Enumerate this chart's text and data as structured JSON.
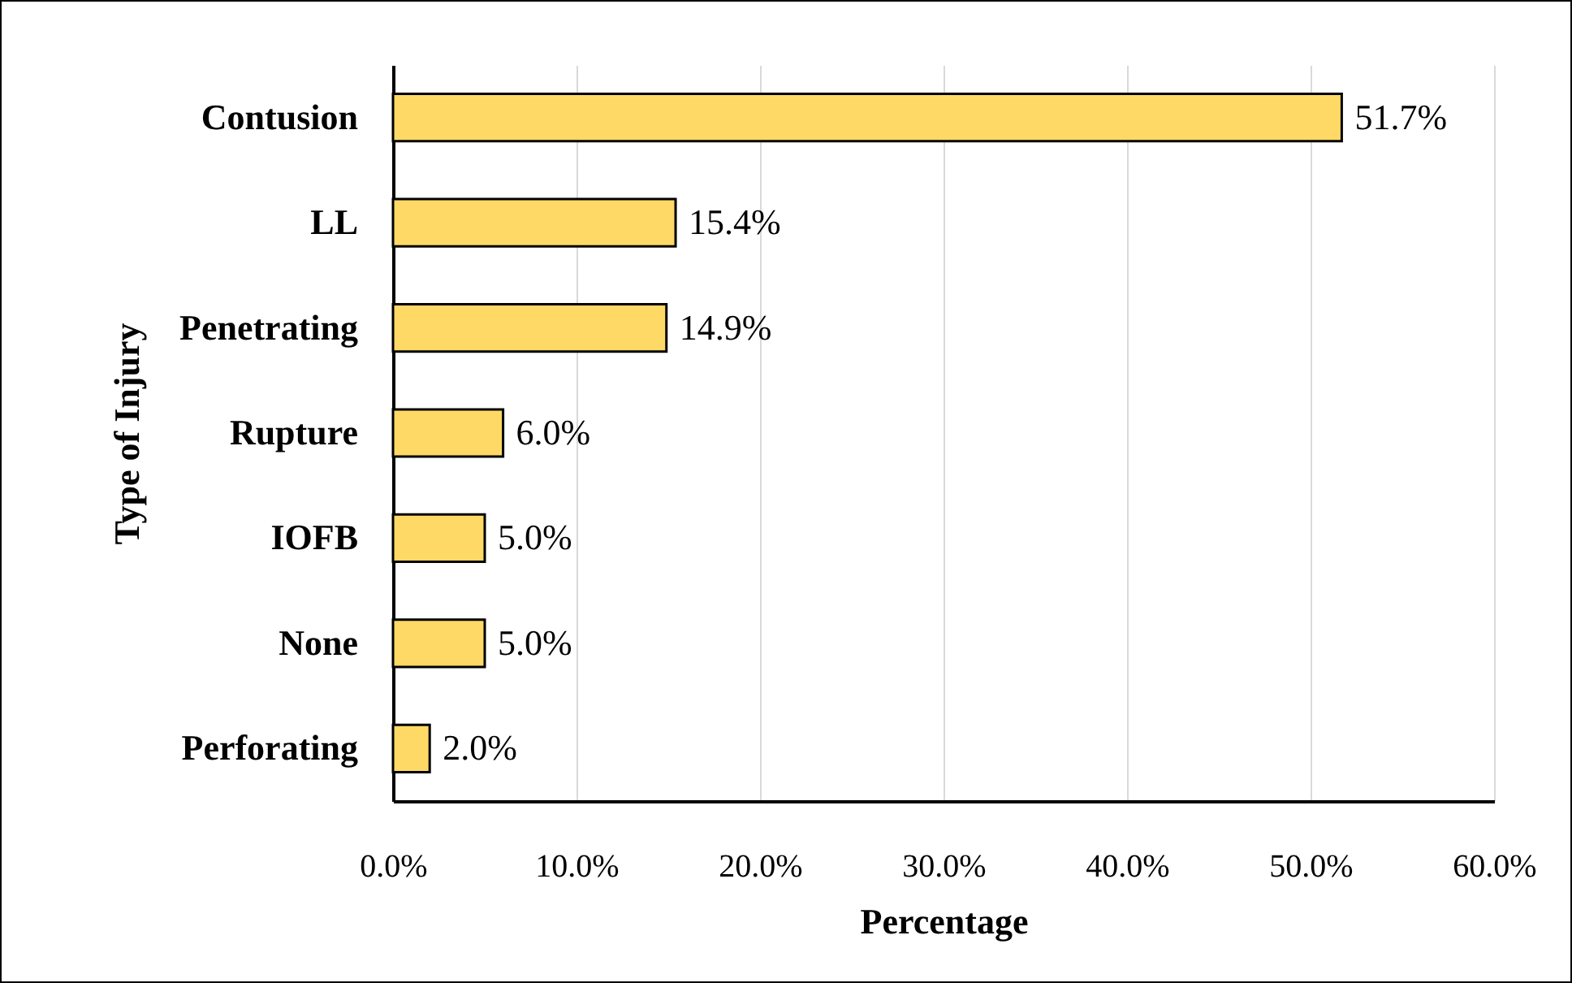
{
  "chart_data": {
    "type": "bar",
    "orientation": "horizontal",
    "xlabel": "Percentage",
    "ylabel": "Type of Injury",
    "categories": [
      "Contusion",
      "LL",
      "Penetrating",
      "Rupture",
      "IOFB",
      "None",
      "Perforating"
    ],
    "values": [
      51.7,
      15.4,
      14.9,
      6.0,
      5.0,
      5.0,
      2.0
    ],
    "value_labels": [
      "51.7%",
      "15.4%",
      "14.9%",
      "6.0%",
      "5.0%",
      "5.0%",
      "2.0%"
    ],
    "color": "#ffd966",
    "xlim": [
      0,
      60
    ],
    "xticks": [
      {
        "value": 0,
        "label": "0.0%"
      },
      {
        "value": 10,
        "label": "10.0%"
      },
      {
        "value": 20,
        "label": "20.0%"
      },
      {
        "value": 30,
        "label": "30.0%"
      },
      {
        "value": 40,
        "label": "40.0%"
      },
      {
        "value": 50,
        "label": "50.0%"
      },
      {
        "value": 60,
        "label": "60.0%"
      }
    ],
    "grid": "x"
  }
}
